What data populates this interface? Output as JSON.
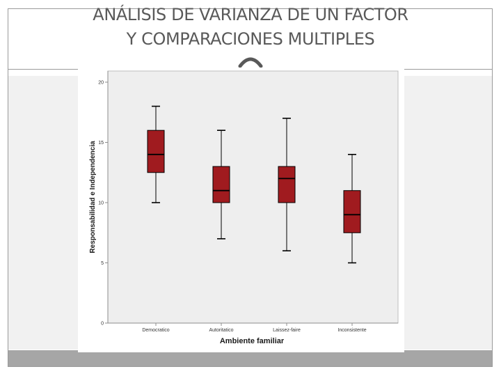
{
  "slide": {
    "title_line1": "ANÁLISIS DE VARIANZA DE UN FACTOR",
    "title_line2": "Y COMPARACIONES MULTIPLES"
  },
  "colors": {
    "box_fill": "#a01b1f",
    "plot_background": "#eeeeee",
    "footer_band": "#a6a6a6"
  },
  "chart_data": {
    "type": "boxplot",
    "xlabel": "Ambiente familiar",
    "ylabel": "Responsabilidad e Independencia",
    "ylim": [
      0,
      20
    ],
    "yticks": [
      0,
      5,
      10,
      15,
      20
    ],
    "grid": false,
    "legend": "none",
    "categories": [
      "Democratico",
      "Autoritatico",
      "Laissez-faire",
      "Inconsistente"
    ],
    "boxes": [
      {
        "category": "Democratico",
        "min": 10,
        "q1": 12.5,
        "median": 14,
        "q3": 16,
        "max": 18
      },
      {
        "category": "Autoritatico",
        "min": 7,
        "q1": 10,
        "median": 11,
        "q3": 13,
        "max": 16
      },
      {
        "category": "Laissez-faire",
        "min": 6,
        "q1": 10,
        "median": 12,
        "q3": 13,
        "max": 17
      },
      {
        "category": "Inconsistente",
        "min": 5,
        "q1": 7.5,
        "median": 9,
        "q3": 11,
        "max": 14
      }
    ]
  }
}
